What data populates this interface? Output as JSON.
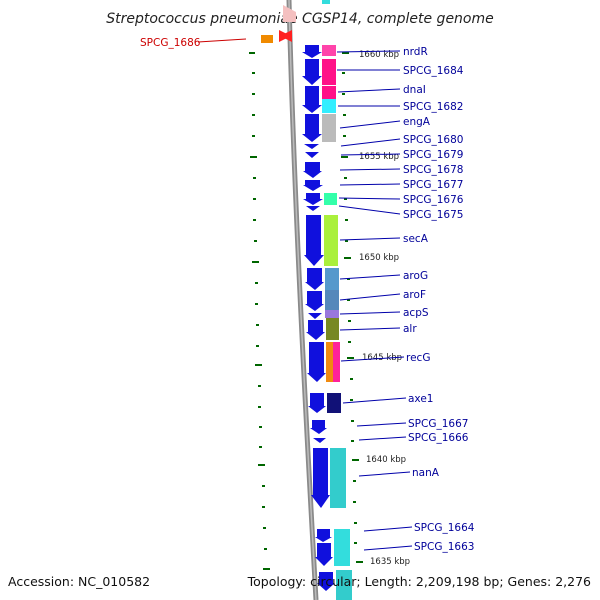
{
  "title": "Streptococcus pneumoniae CGSP14, complete genome",
  "footer": {
    "accession": "Accession: NC_010582",
    "topology": "Topology: circular; Length: 2,209,198 bp; Genes: 2,276"
  },
  "kbp_labels": [
    "1660 kbp",
    "1655 kbp",
    "1650 kbp",
    "1645 kbp",
    "1640 kbp",
    "1635 kbp"
  ],
  "gene_labels": [
    "nrdR",
    "SPCG_1684",
    "dnaI",
    "SPCG_1682",
    "engA",
    "SPCG_1680",
    "SPCG_1679",
    "SPCG_1678",
    "SPCG_1677",
    "SPCG_1676",
    "SPCG_1675",
    "secA",
    "aroG",
    "aroF",
    "acpS",
    "alr",
    "recG",
    "axe1",
    "SPCG_1667",
    "SPCG_1666",
    "nanA",
    "SPCG_1664",
    "SPCG_1663"
  ],
  "highlight_label": "SPCG_1686",
  "colors": {
    "arrow_blue": "#1010dd",
    "label_blue": "#000099",
    "highlight_red": "#cc0000",
    "tick_green": "#006600",
    "backbone_gray": "#888888"
  }
}
